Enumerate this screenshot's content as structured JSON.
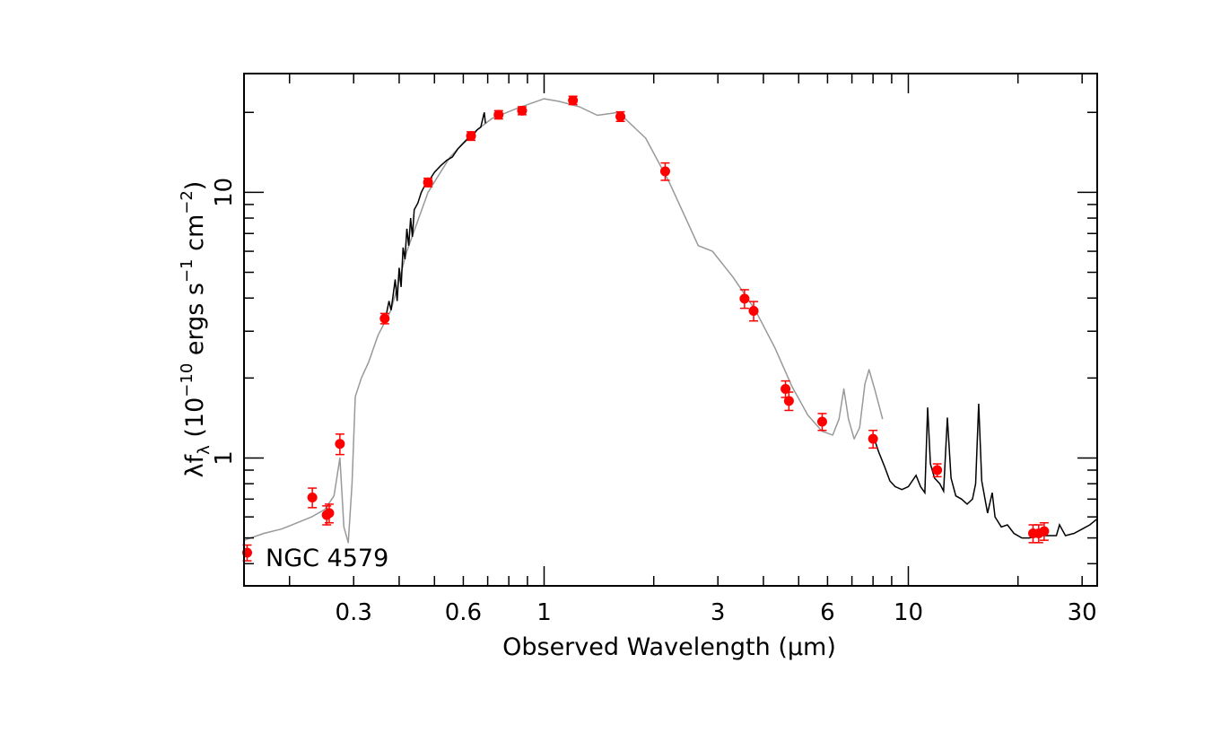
{
  "chart_data": {
    "type": "scatter",
    "annotation": "NGC 4579",
    "xlabel": "Observed Wavelength (μm)",
    "ylabel": {
      "prefix": "λf",
      "sub": "λ",
      "open": " (10",
      "exp1": "−10",
      "units": " ergs s",
      "exp2": "−1",
      "units2": " cm",
      "exp3": "−2",
      "close": ")"
    },
    "xscale": "log",
    "yscale": "log",
    "xlim": [
      0.15,
      33
    ],
    "ylim": [
      0.33,
      28
    ],
    "x_tick_labels": [
      {
        "value": 0.3,
        "label": "0.3"
      },
      {
        "value": 0.6,
        "label": "0.6"
      },
      {
        "value": 1,
        "label": "1"
      },
      {
        "value": 3,
        "label": "3"
      },
      {
        "value": 6,
        "label": "6"
      },
      {
        "value": 10,
        "label": "10"
      },
      {
        "value": 30,
        "label": "30"
      }
    ],
    "y_tick_labels": [
      {
        "value": 1,
        "label": "1"
      },
      {
        "value": 10,
        "label": "10"
      }
    ],
    "colors": {
      "points": "#ff0000",
      "model": "#999999",
      "observed_spectrum": "#000000"
    },
    "photometry": [
      {
        "x": 0.153,
        "y": 0.44,
        "err": 0.03
      },
      {
        "x": 0.231,
        "y": 0.71,
        "err": 0.06
      },
      {
        "x": 0.253,
        "y": 0.61,
        "err": 0.05
      },
      {
        "x": 0.257,
        "y": 0.62,
        "err": 0.05
      },
      {
        "x": 0.275,
        "y": 1.13,
        "err": 0.1
      },
      {
        "x": 0.365,
        "y": 3.35,
        "err": 0.15
      },
      {
        "x": 0.48,
        "y": 10.9,
        "err": 0.4
      },
      {
        "x": 0.63,
        "y": 16.3,
        "err": 0.6
      },
      {
        "x": 0.75,
        "y": 19.6,
        "err": 0.7
      },
      {
        "x": 0.87,
        "y": 20.3,
        "err": 0.7
      },
      {
        "x": 1.2,
        "y": 22.2,
        "err": 0.8
      },
      {
        "x": 1.62,
        "y": 19.3,
        "err": 0.8
      },
      {
        "x": 2.15,
        "y": 12.0,
        "err": 0.9
      },
      {
        "x": 3.55,
        "y": 3.98,
        "err": 0.32
      },
      {
        "x": 3.76,
        "y": 3.58,
        "err": 0.3
      },
      {
        "x": 4.6,
        "y": 1.82,
        "err": 0.13
      },
      {
        "x": 4.7,
        "y": 1.64,
        "err": 0.13
      },
      {
        "x": 5.8,
        "y": 1.37,
        "err": 0.1
      },
      {
        "x": 8.0,
        "y": 1.18,
        "err": 0.09
      },
      {
        "x": 12.0,
        "y": 0.9,
        "err": 0.05
      },
      {
        "x": 22.0,
        "y": 0.52,
        "err": 0.04
      },
      {
        "x": 22.8,
        "y": 0.52,
        "err": 0.04
      },
      {
        "x": 23.6,
        "y": 0.53,
        "err": 0.04
      }
    ],
    "model_curve": [
      [
        0.15,
        0.49
      ],
      [
        0.17,
        0.52
      ],
      [
        0.19,
        0.54
      ],
      [
        0.21,
        0.57
      ],
      [
        0.23,
        0.6
      ],
      [
        0.25,
        0.64
      ],
      [
        0.265,
        0.72
      ],
      [
        0.275,
        1.0
      ],
      [
        0.282,
        0.55
      ],
      [
        0.29,
        0.48
      ],
      [
        0.297,
        0.8
      ],
      [
        0.303,
        1.7
      ],
      [
        0.315,
        2.0
      ],
      [
        0.33,
        2.3
      ],
      [
        0.35,
        2.9
      ],
      [
        0.38,
        3.6
      ],
      [
        0.42,
        6.0
      ],
      [
        0.48,
        10.0
      ],
      [
        0.55,
        13.5
      ],
      [
        0.63,
        16.5
      ],
      [
        0.72,
        19.0
      ],
      [
        0.85,
        20.8
      ],
      [
        1.0,
        22.5
      ],
      [
        1.1,
        22.0
      ],
      [
        1.25,
        21.0
      ],
      [
        1.4,
        19.5
      ],
      [
        1.6,
        20.0
      ],
      [
        1.9,
        16.0
      ],
      [
        2.2,
        11.0
      ],
      [
        2.5,
        7.5
      ],
      [
        2.65,
        6.3
      ],
      [
        2.9,
        6.0
      ],
      [
        3.3,
        4.8
      ],
      [
        3.8,
        3.6
      ],
      [
        4.3,
        2.6
      ],
      [
        4.8,
        1.85
      ],
      [
        5.3,
        1.45
      ],
      [
        5.8,
        1.26
      ],
      [
        6.2,
        1.22
      ],
      [
        6.45,
        1.4
      ],
      [
        6.65,
        1.82
      ],
      [
        6.85,
        1.4
      ],
      [
        7.1,
        1.18
      ],
      [
        7.35,
        1.3
      ],
      [
        7.6,
        1.9
      ],
      [
        7.8,
        2.15
      ],
      [
        8.1,
        1.8
      ],
      [
        8.5,
        1.4
      ]
    ],
    "observed_spectrum_optical": [
      [
        0.365,
        3.3
      ],
      [
        0.37,
        3.55
      ],
      [
        0.375,
        3.9
      ],
      [
        0.38,
        3.6
      ],
      [
        0.385,
        4.1
      ],
      [
        0.39,
        4.7
      ],
      [
        0.395,
        3.9
      ],
      [
        0.4,
        5.2
      ],
      [
        0.405,
        4.4
      ],
      [
        0.41,
        6.2
      ],
      [
        0.415,
        5.6
      ],
      [
        0.42,
        7.3
      ],
      [
        0.425,
        6.3
      ],
      [
        0.43,
        8.0
      ],
      [
        0.435,
        6.8
      ],
      [
        0.44,
        8.6
      ],
      [
        0.45,
        9.1
      ],
      [
        0.46,
        10.0
      ],
      [
        0.47,
        10.6
      ],
      [
        0.48,
        10.9
      ],
      [
        0.5,
        11.9
      ],
      [
        0.52,
        12.6
      ],
      [
        0.54,
        13.2
      ],
      [
        0.56,
        13.6
      ],
      [
        0.58,
        14.6
      ],
      [
        0.6,
        15.3
      ],
      [
        0.62,
        16.0
      ],
      [
        0.64,
        16.5
      ],
      [
        0.655,
        17.2
      ],
      [
        0.67,
        17.6
      ],
      [
        0.685,
        20.0
      ],
      [
        0.69,
        18.2
      ]
    ],
    "observed_spectrum_ir": [
      [
        8.0,
        1.22
      ],
      [
        8.3,
        1.05
      ],
      [
        8.6,
        0.93
      ],
      [
        8.9,
        0.82
      ],
      [
        9.2,
        0.78
      ],
      [
        9.6,
        0.76
      ],
      [
        10.0,
        0.78
      ],
      [
        10.5,
        0.86
      ],
      [
        10.8,
        0.78
      ],
      [
        11.1,
        0.74
      ],
      [
        11.3,
        1.55
      ],
      [
        11.5,
        0.95
      ],
      [
        11.8,
        0.84
      ],
      [
        12.2,
        0.8
      ],
      [
        12.5,
        0.75
      ],
      [
        12.8,
        1.42
      ],
      [
        13.1,
        0.84
      ],
      [
        13.5,
        0.72
      ],
      [
        14.0,
        0.7
      ],
      [
        14.5,
        0.67
      ],
      [
        15.0,
        0.7
      ],
      [
        15.3,
        0.8
      ],
      [
        15.6,
        1.6
      ],
      [
        15.9,
        0.82
      ],
      [
        16.5,
        0.62
      ],
      [
        17.0,
        0.74
      ],
      [
        17.3,
        0.6
      ],
      [
        18.0,
        0.55
      ],
      [
        18.7,
        0.56
      ],
      [
        19.5,
        0.52
      ],
      [
        20.5,
        0.5
      ],
      [
        21.5,
        0.5
      ],
      [
        23.0,
        0.51
      ],
      [
        24.5,
        0.51
      ],
      [
        25.5,
        0.51
      ],
      [
        26.0,
        0.56
      ],
      [
        27.0,
        0.51
      ],
      [
        28.5,
        0.52
      ],
      [
        30.0,
        0.54
      ],
      [
        31.5,
        0.56
      ],
      [
        33.0,
        0.59
      ]
    ]
  }
}
